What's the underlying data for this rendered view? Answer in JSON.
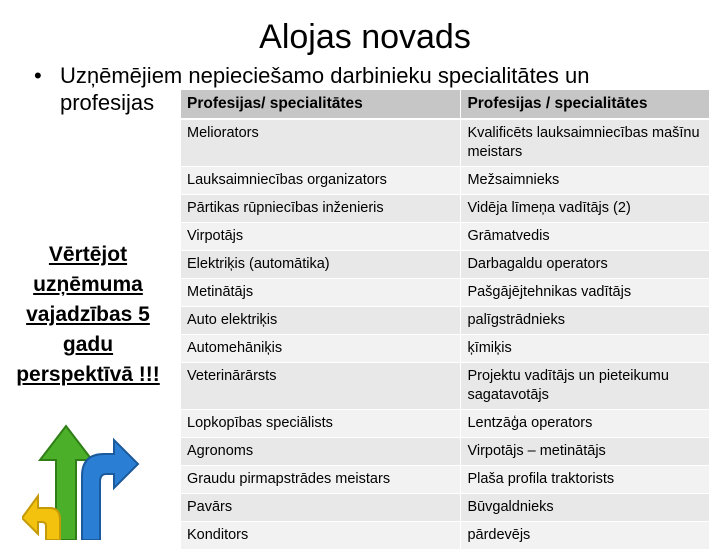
{
  "title": "Alojas novads",
  "bullet": {
    "line1": "Uzņēmējiem nepieciešamo darbinieku specialitātes un",
    "line2": "profesijas"
  },
  "side_note": [
    "Vērtējot",
    "uzņēmuma",
    "vajadzības 5",
    "gadu",
    "perspektīvā !!!"
  ],
  "table": {
    "headers": [
      "Profesijas/ specialitātes",
      "Profesijas / specialitātes"
    ],
    "rows": [
      [
        "Meliorators",
        "Kvalificēts lauksaimniecības mašīnu meistars"
      ],
      [
        "Lauksaimniecības organizators",
        "Mežsaimnieks"
      ],
      [
        "Pārtikas rūpniecības inženieris",
        "Vidēja līmeņa vadītājs (2)"
      ],
      [
        "Virpotājs",
        "Grāmatvedis"
      ],
      [
        "Elektriķis (automātika)",
        "Darbagaldu operators"
      ],
      [
        "Metinātājs",
        "Pašgājējtehnikas vadītājs"
      ],
      [
        "Auto elektriķis",
        "palīgstrādnieks"
      ],
      [
        "Automehāniķis",
        "ķīmiķis"
      ],
      [
        "Veterinārārsts",
        "Projektu vadītājs un pieteikumu sagatavotājs"
      ],
      [
        "Lopkopības speciālists",
        "Lentzāģa operators"
      ],
      [
        "Agronoms",
        "Virpotājs – metinātājs"
      ],
      [
        "Graudu pirmapstrādes meistars",
        "Plaša profila traktorists"
      ],
      [
        "Pavārs",
        "Būvgaldnieks"
      ],
      [
        "Konditors",
        "pārdevējs"
      ]
    ]
  },
  "colors": {
    "header_bg": "#c6c6c6",
    "row_bg": "#e8e8e8",
    "row_alt_bg": "#f2f2f2",
    "arrow_green": "#4caf2a",
    "arrow_blue": "#2a7fd4",
    "arrow_yellow": "#f2c20f"
  },
  "decoration": "arrows-graphic"
}
